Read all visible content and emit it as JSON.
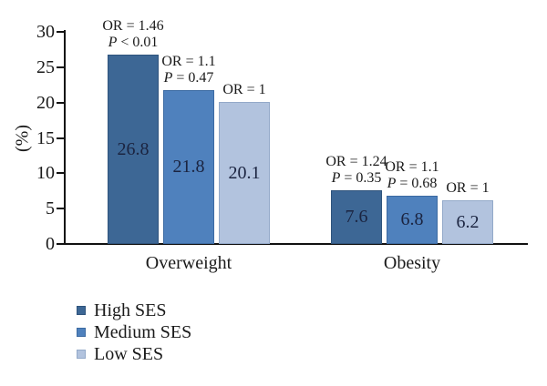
{
  "chart_data": {
    "type": "bar",
    "ylabel": "(%)",
    "ylim": [
      0,
      30
    ],
    "yticks": [
      0,
      5,
      10,
      15,
      20,
      25,
      30
    ],
    "categories": [
      "Overweight",
      "Obesity"
    ],
    "series": [
      {
        "name": "High SES",
        "color": "#3d6795",
        "border_color": "#2e537c",
        "values": [
          26.8,
          7.6
        ],
        "annotations": [
          [
            "OR = 1.46",
            "P < 0.01"
          ],
          [
            "OR = 1.24",
            "P = 0.35"
          ]
        ]
      },
      {
        "name": "Medium SES",
        "color": "#4f81bd",
        "border_color": "#3c6aa2",
        "values": [
          21.8,
          6.8
        ],
        "annotations": [
          [
            "OR = 1.1",
            "P = 0.47"
          ],
          [
            "OR = 1.1",
            "P = 0.68"
          ]
        ]
      },
      {
        "name": "Low SES",
        "color": "#b2c3de",
        "border_color": "#93a9c9",
        "values": [
          20.1,
          6.2
        ],
        "annotations": [
          [
            "OR = 1"
          ],
          [
            "OR = 1"
          ]
        ]
      }
    ],
    "legend": {
      "position": "bottom-left",
      "entries": [
        "High SES",
        "Medium SES",
        "Low SES"
      ]
    },
    "grid": false
  }
}
